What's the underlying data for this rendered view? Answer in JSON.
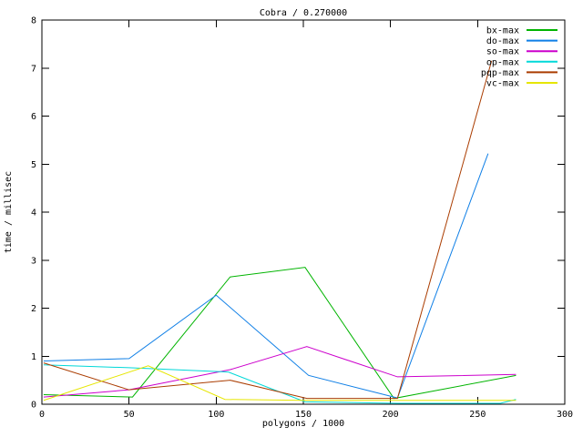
{
  "window": {
    "background": "#ffffff",
    "foreground": "#000000"
  },
  "chart_data": {
    "type": "line",
    "title": "Cobra / 0.270000",
    "xlabel": "polygons / 1000",
    "ylabel": "time / millisec",
    "xlim": [
      0,
      300
    ],
    "ylim": [
      0,
      8
    ],
    "x_ticks": [
      0,
      50,
      100,
      150,
      200,
      250,
      300
    ],
    "y_ticks": [
      0,
      1,
      2,
      3,
      4,
      5,
      6,
      7,
      8
    ],
    "grid": false,
    "legend_position": "top-right",
    "series": [
      {
        "name": "bx-max",
        "color": "#00b400",
        "x": [
          1,
          52,
          108,
          151,
          202,
          272
        ],
        "y": [
          0.2,
          0.15,
          2.65,
          2.85,
          0.12,
          0.6
        ]
      },
      {
        "name": "do-max",
        "color": "#0f7fe6",
        "x": [
          1,
          50,
          100,
          153,
          204,
          256
        ],
        "y": [
          0.9,
          0.95,
          2.27,
          0.6,
          0.13,
          5.22
        ]
      },
      {
        "name": "so-max",
        "color": "#cc00cc",
        "x": [
          1,
          50,
          108,
          152,
          204,
          272
        ],
        "y": [
          0.15,
          0.3,
          0.72,
          1.2,
          0.57,
          0.62
        ]
      },
      {
        "name": "op-max",
        "color": "#00d8d8",
        "x": [
          1,
          50,
          107,
          151,
          204,
          263,
          272
        ],
        "y": [
          0.82,
          0.76,
          0.67,
          0.05,
          0.02,
          0.02,
          0.1
        ]
      },
      {
        "name": "pqp-max",
        "color": "#aa3c00",
        "x": [
          1,
          50,
          108,
          152,
          204,
          258
        ],
        "y": [
          0.86,
          0.3,
          0.5,
          0.12,
          0.12,
          7.15
        ]
      },
      {
        "name": "vc-max",
        "color": "#e6e600",
        "x": [
          1,
          61,
          105,
          150,
          204,
          272
        ],
        "y": [
          0.08,
          0.8,
          0.1,
          0.08,
          0.08,
          0.08
        ]
      }
    ]
  }
}
